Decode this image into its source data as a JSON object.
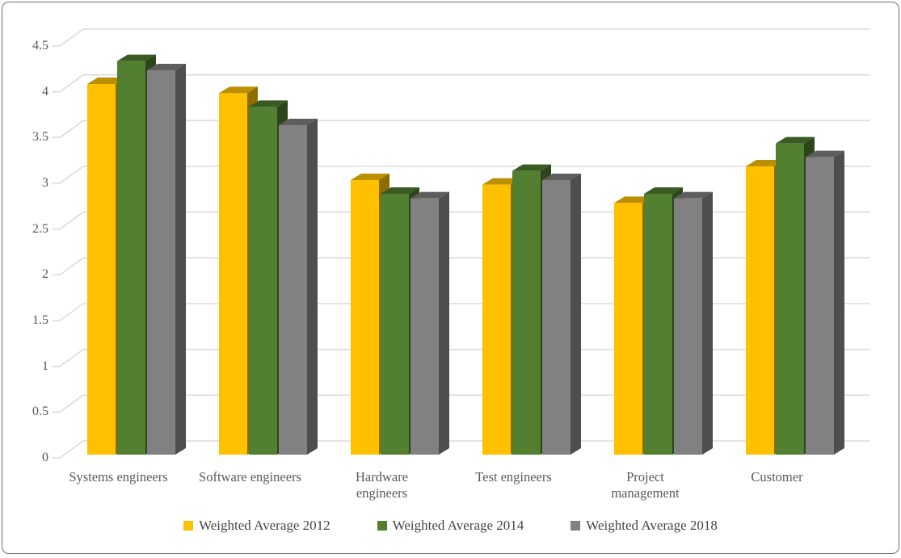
{
  "chart_data": {
    "type": "bar",
    "style": "3d-clustered-column",
    "title": "",
    "xlabel": "",
    "ylabel": "",
    "categories": [
      "Systems engineers",
      "Software engineers",
      "Hardware engineers",
      "Test engineers",
      "Project management",
      "Customer"
    ],
    "category_label_lines": [
      [
        "Systems engineers"
      ],
      [
        "Software engineers"
      ],
      [
        "Hardware",
        "engineers"
      ],
      [
        "Test engineers"
      ],
      [
        "Project",
        "management"
      ],
      [
        "Customer"
      ]
    ],
    "series": [
      {
        "name": "Weighted Average 2012",
        "color": "#FFC000",
        "color_top": "#BC8F00",
        "color_side": "#8F6C00",
        "values": [
          4.05,
          3.95,
          3.0,
          2.95,
          2.75,
          3.15
        ]
      },
      {
        "name": "Weighted Average 2014",
        "color": "#527F30",
        "color_top": "#3A5A22",
        "color_side": "#2C451A",
        "values": [
          4.3,
          3.8,
          2.85,
          3.1,
          2.85,
          3.4
        ]
      },
      {
        "name": "Weighted Average 2018",
        "color": "#818181",
        "color_top": "#5E5E5E",
        "color_side": "#4E4E4E",
        "values": [
          4.2,
          3.6,
          2.8,
          3.0,
          2.8,
          3.25
        ]
      }
    ],
    "y_axis": {
      "min": 0,
      "max": 4.5,
      "step": 0.5,
      "tick_labels": [
        "0",
        "0.5",
        "1",
        "1.5",
        "2",
        "2.5",
        "3",
        "3.5",
        "4",
        "4.5"
      ]
    },
    "grid": true,
    "gridline_color": "#DBDBDB",
    "text_color": "#595959",
    "legend_text_color": "#464646",
    "legend_position": "bottom",
    "background_color": "#FFFFFF",
    "border_color": "#6F6F6F"
  }
}
